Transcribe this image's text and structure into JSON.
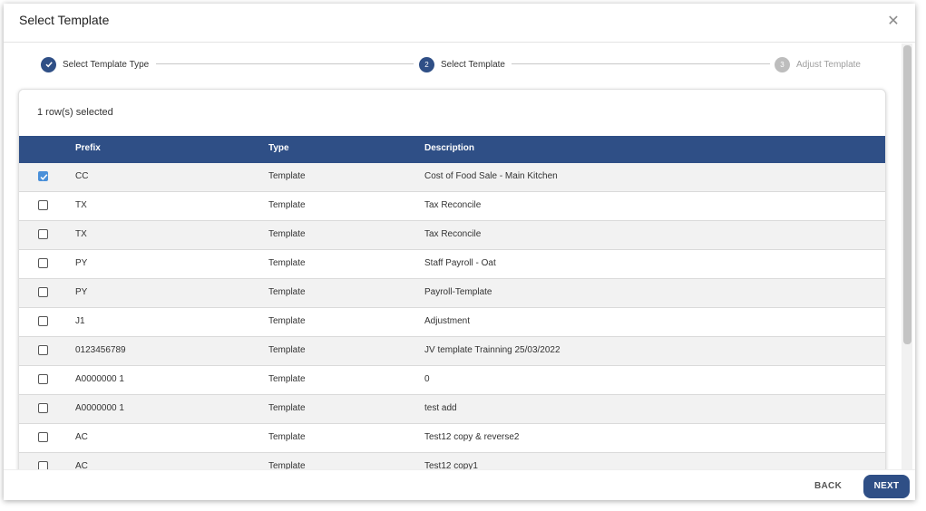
{
  "dialog": {
    "title": "Select Template",
    "close_glyph": "✕"
  },
  "stepper": {
    "steps": [
      {
        "number": "1",
        "label": "Select Template Type",
        "state": "done"
      },
      {
        "number": "2",
        "label": "Select Template",
        "state": "active"
      },
      {
        "number": "3",
        "label": "Adjust Template",
        "state": "inactive"
      }
    ]
  },
  "table": {
    "selection_text": "1 row(s) selected",
    "headers": {
      "prefix": "Prefix",
      "type": "Type",
      "description": "Description"
    },
    "rows": [
      {
        "checked": true,
        "prefix": "CC",
        "type": "Template",
        "description": "Cost of Food Sale - Main Kitchen"
      },
      {
        "checked": false,
        "prefix": "TX",
        "type": "Template",
        "description": "Tax Reconcile"
      },
      {
        "checked": false,
        "prefix": "TX",
        "type": "Template",
        "description": "Tax Reconcile"
      },
      {
        "checked": false,
        "prefix": "PY",
        "type": "Template",
        "description": "Staff Payroll - Oat"
      },
      {
        "checked": false,
        "prefix": "PY",
        "type": "Template",
        "description": "Payroll-Template"
      },
      {
        "checked": false,
        "prefix": "J1",
        "type": "Template",
        "description": "Adjustment"
      },
      {
        "checked": false,
        "prefix": "0123456789",
        "type": "Template",
        "description": "JV template Trainning 25/03/2022"
      },
      {
        "checked": false,
        "prefix": "A0000000 1",
        "type": "Template",
        "description": "0"
      },
      {
        "checked": false,
        "prefix": "A0000000 1",
        "type": "Template",
        "description": "test add"
      },
      {
        "checked": false,
        "prefix": "AC",
        "type": "Template",
        "description": "Test12 copy & reverse2"
      },
      {
        "checked": false,
        "prefix": "AC",
        "type": "Template",
        "description": "Test12 copy1"
      }
    ]
  },
  "footer": {
    "back_label": "BACK",
    "next_label": "NEXT"
  },
  "colors": {
    "primary": "#2f4f86",
    "checkbox_checked": "#4a90d9"
  }
}
